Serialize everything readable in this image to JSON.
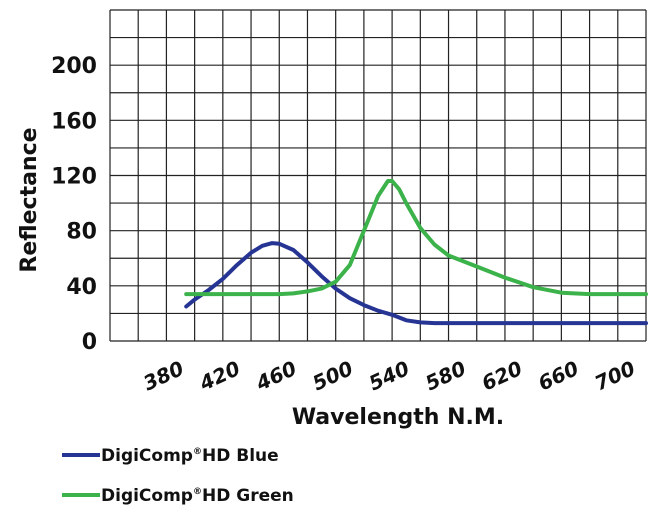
{
  "chart_data": {
    "type": "line",
    "title": "",
    "xlabel": "Wavelength N.M.",
    "ylabel": "Reflectance",
    "xlim": [
      340,
      720
    ],
    "ylim": [
      0,
      240
    ],
    "x_ticks": [
      380,
      420,
      460,
      500,
      540,
      580,
      620,
      660,
      700
    ],
    "y_ticks": [
      0,
      40,
      80,
      120,
      160,
      200
    ],
    "grid": true,
    "legend_position": "bottom-left",
    "series": [
      {
        "name": "DigiComp®HD Blue",
        "legend_main": "DigiComp",
        "legend_mark": "®",
        "legend_rest": "HD Blue",
        "color": "#263593",
        "x": [
          394,
          400,
          410,
          420,
          430,
          440,
          448,
          455,
          460,
          470,
          480,
          490,
          500,
          510,
          520,
          530,
          540,
          550,
          560,
          570,
          580,
          600,
          620,
          660,
          700,
          720
        ],
        "y": [
          25,
          30,
          37,
          45,
          55,
          64,
          69,
          71,
          70.5,
          66,
          57,
          47,
          38,
          31,
          26,
          22,
          19,
          15,
          13.5,
          13,
          13,
          13,
          13,
          13,
          13,
          13
        ]
      },
      {
        "name": "DigiComp®HD Green",
        "legend_main": "DigiComp",
        "legend_mark": "®",
        "legend_rest": "HD Green",
        "color": "#3cb34a",
        "x": [
          394,
          420,
          440,
          460,
          470,
          480,
          490,
          500,
          510,
          520,
          530,
          537,
          540,
          545,
          550,
          560,
          570,
          580,
          600,
          620,
          640,
          660,
          680,
          720
        ],
        "y": [
          34,
          34,
          34,
          34,
          34.5,
          36,
          38,
          43,
          55,
          80,
          105,
          116,
          116,
          110,
          100,
          82,
          70,
          62,
          54,
          46,
          39,
          35,
          34,
          34
        ]
      }
    ]
  }
}
